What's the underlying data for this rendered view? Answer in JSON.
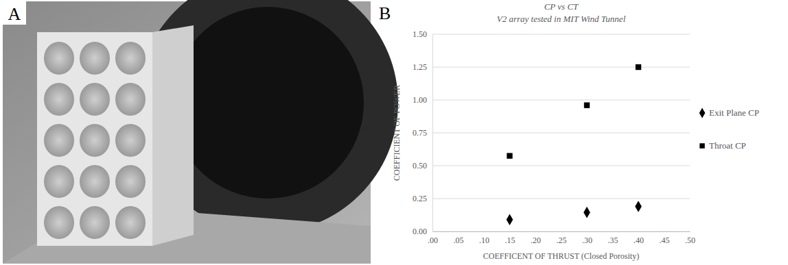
{
  "panel_labels": [
    "A",
    "B"
  ],
  "chart_data": {
    "type": "scatter",
    "title": "CP vs CT",
    "subtitle": "V2 array tested in MIT Wind Tunnel",
    "x_label": "COEFFICENT OF THRUST (Closed Porosity)",
    "y_label": "COEFFICIENT OF POWER",
    "x": [
      0.15,
      0.3,
      0.4
    ],
    "series": [
      {
        "name": "Exit Plane CP",
        "color": "#000000",
        "marker": "diamond",
        "values": [
          0.09,
          0.145,
          0.19
        ]
      },
      {
        "name": "Throat CP",
        "color": "#000000",
        "marker": "square",
        "values": [
          0.575,
          0.96,
          1.25
        ]
      }
    ],
    "xlim": [
      0,
      0.5
    ],
    "xticks": [
      {
        "value": 0,
        "label": ".00"
      },
      {
        "value": 0.05,
        "label": ".05"
      },
      {
        "value": 0.1,
        "label": ".10"
      },
      {
        "value": 0.15,
        "label": ".15"
      },
      {
        "value": 0.2,
        "label": ".20"
      },
      {
        "value": 0.25,
        "label": ".25"
      },
      {
        "value": 0.3,
        "label": ".30"
      },
      {
        "value": 0.35,
        "label": ".35"
      },
      {
        "value": 0.4,
        "label": ".40"
      },
      {
        "value": 0.45,
        "label": ".45"
      },
      {
        "value": 0.5,
        "label": ".50"
      }
    ],
    "ylim": [
      0,
      1.5
    ],
    "yticks": [
      {
        "value": 0,
        "label": "0.00"
      },
      {
        "value": 0.25,
        "label": "0.25"
      },
      {
        "value": 0.5,
        "label": "0.50"
      },
      {
        "value": 0.75,
        "label": "0.75"
      },
      {
        "value": 1,
        "label": "1.00"
      },
      {
        "value": 1.25,
        "label": "1.25"
      },
      {
        "value": 1.5,
        "label": "1.50"
      }
    ],
    "grid": true,
    "legend": "right"
  }
}
